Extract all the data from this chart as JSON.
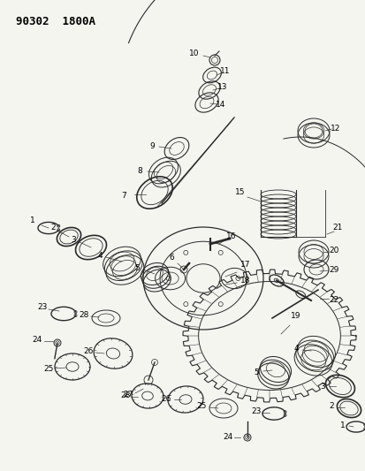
{
  "title": "90302  1800A",
  "bg_color": "#f5f5f0",
  "line_color": "#2a2a2a",
  "label_color": "#000000",
  "figsize": [
    4.14,
    5.33
  ],
  "dpi": 100,
  "title_fontsize": 9,
  "label_fontsize": 6.5
}
